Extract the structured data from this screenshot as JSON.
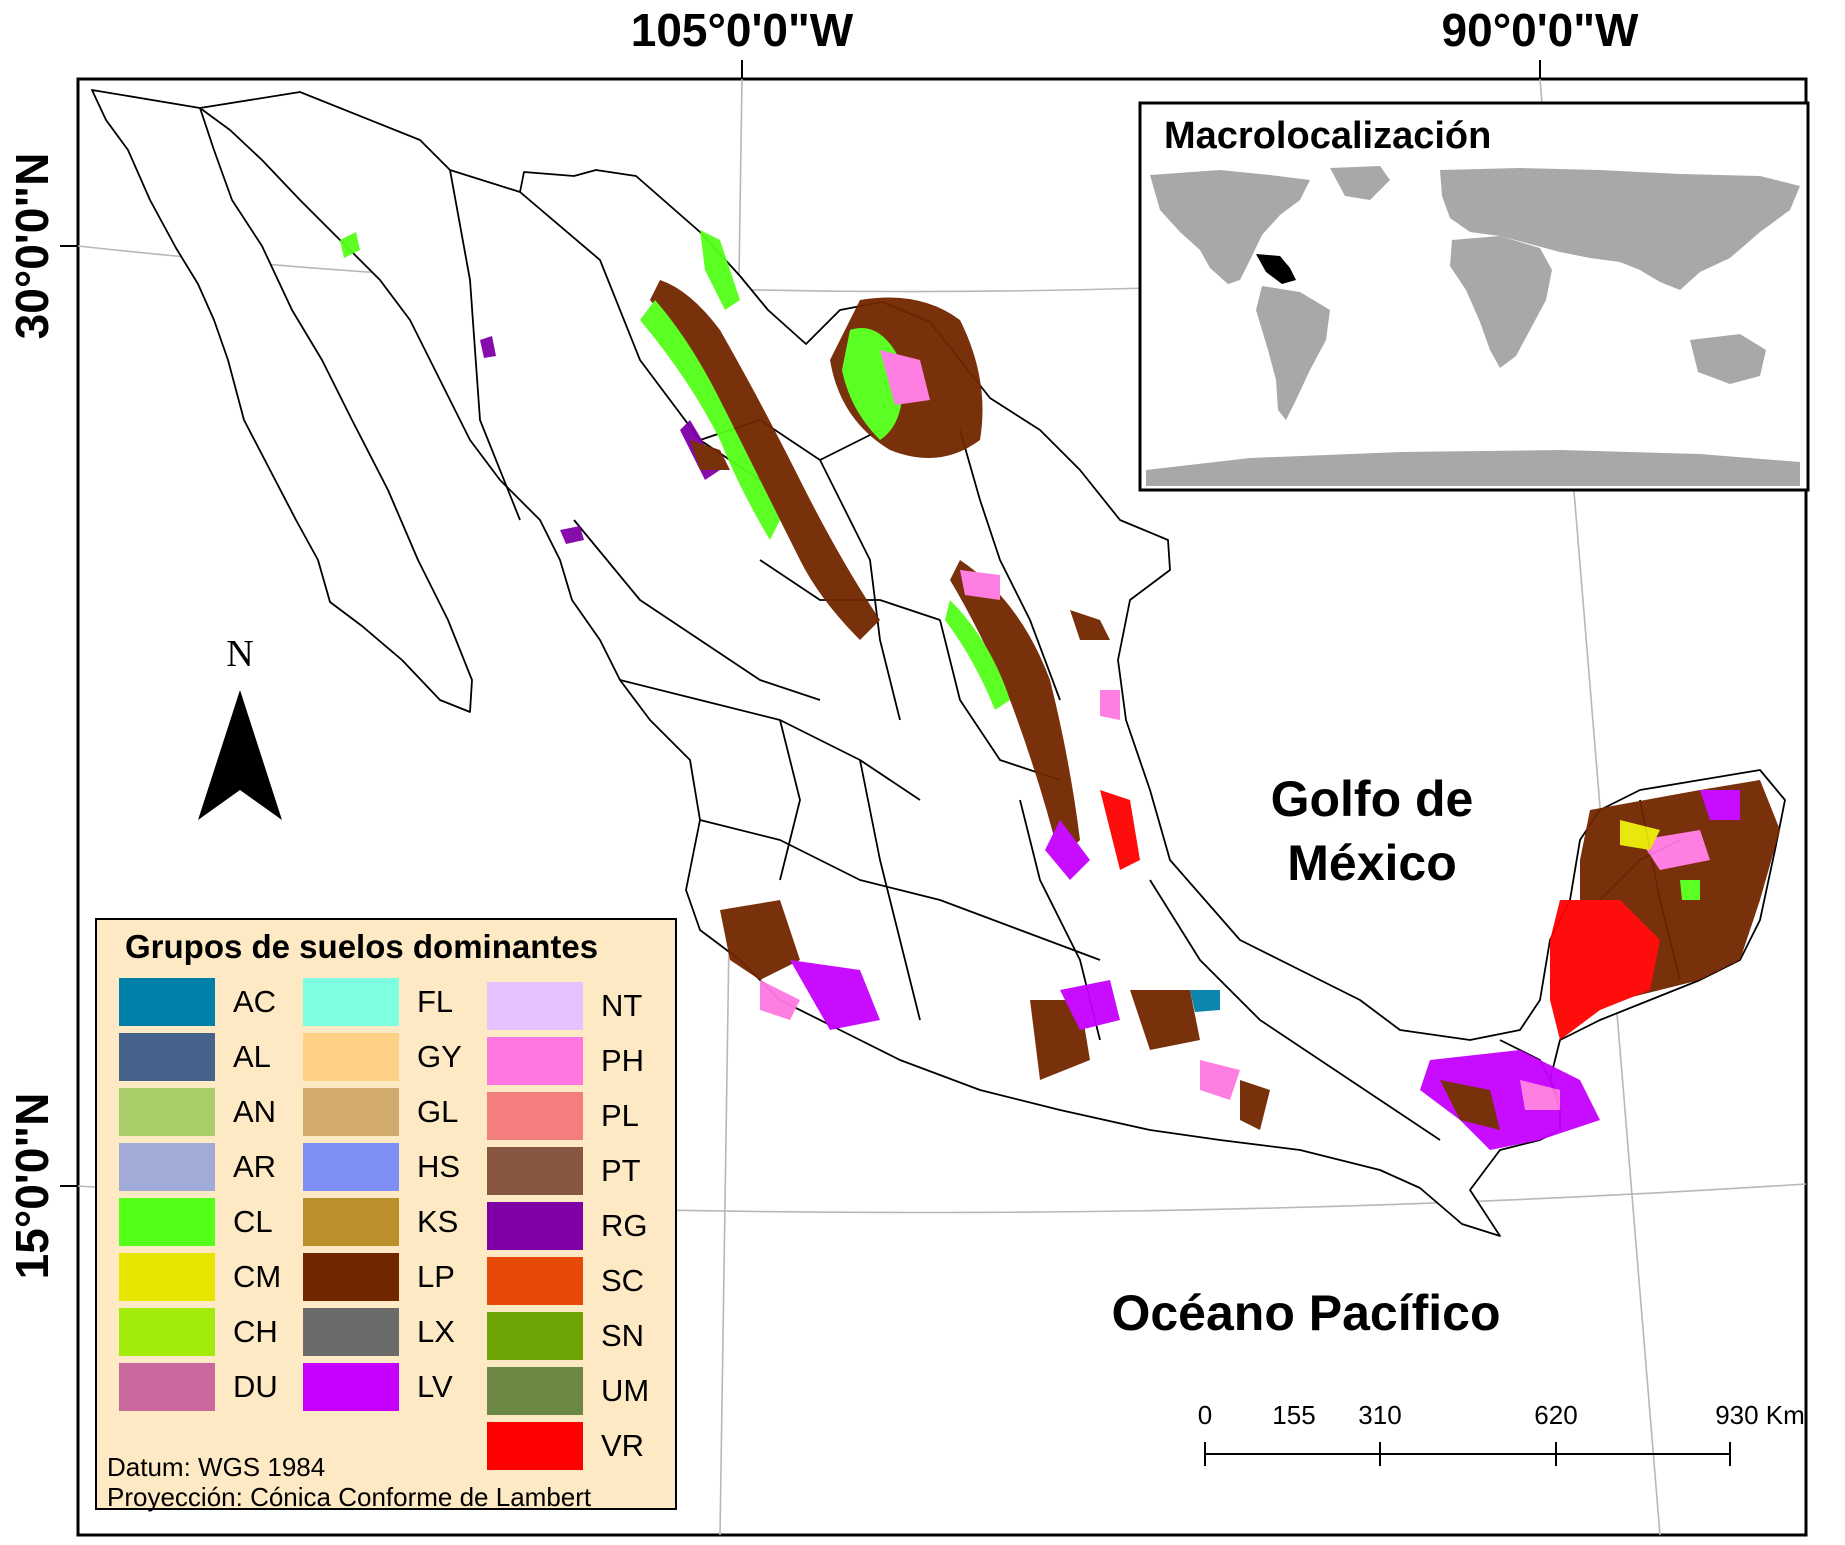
{
  "map": {
    "lon_labels": [
      "105°0'0\"W",
      "90°0'0\"W"
    ],
    "lat_labels": [
      "30°0'0\"N",
      "15°0'0\"N"
    ],
    "sea_labels": {
      "gulf_line1": "Golfo de",
      "gulf_line2": "México",
      "pacific": "Océano Pacífico"
    },
    "north_arrow": "N",
    "inset_title": "Macrolocalización",
    "scale_bar": {
      "labels": [
        "0",
        "155",
        "310",
        "620",
        "930 Km"
      ]
    }
  },
  "legend": {
    "title": "Grupos de suelos dominantes",
    "items": [
      {
        "code": "AC",
        "color": "#0080a8"
      },
      {
        "code": "AL",
        "color": "#44628a"
      },
      {
        "code": "AN",
        "color": "#a9cd68"
      },
      {
        "code": "AR",
        "color": "#a2abd8"
      },
      {
        "code": "CL",
        "color": "#54ff18"
      },
      {
        "code": "CM",
        "color": "#e8e600"
      },
      {
        "code": "CH",
        "color": "#a0ea0c"
      },
      {
        "code": "DU",
        "color": "#c9679f"
      },
      {
        "code": "FL",
        "color": "#7effe0"
      },
      {
        "code": "GY",
        "color": "#ffd186"
      },
      {
        "code": "GL",
        "color": "#d1aa6c"
      },
      {
        "code": "HS",
        "color": "#7d8ff5"
      },
      {
        "code": "KS",
        "color": "#bb902c"
      },
      {
        "code": "LP",
        "color": "#722600"
      },
      {
        "code": "LX",
        "color": "#6b6b6b"
      },
      {
        "code": "LV",
        "color": "#c600ff"
      },
      {
        "code": "NT",
        "color": "#e5c1ff"
      },
      {
        "code": "PH",
        "color": "#ff78e0"
      },
      {
        "code": "PL",
        "color": "#f47d7d"
      },
      {
        "code": "PT",
        "color": "#865641"
      },
      {
        "code": "RG",
        "color": "#7f00a6"
      },
      {
        "code": "SC",
        "color": "#e64a06"
      },
      {
        "code": "SN",
        "color": "#6ea304"
      },
      {
        "code": "UM",
        "color": "#6d8845"
      },
      {
        "code": "VR",
        "color": "#ff0000"
      }
    ],
    "datum": "Datum: WGS 1984",
    "projection": "Proyección: Cónica Conforme de Lambert"
  }
}
